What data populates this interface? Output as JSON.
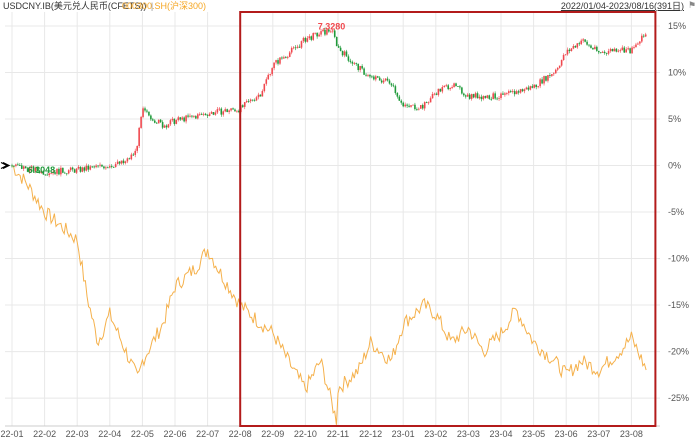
{
  "legend": {
    "series1": "USDCNY.IB(美元兑人民币(CFETS))",
    "separator": "|",
    "series2": "000300.SH(沪深300)",
    "date_range": "2022/01/04-2023/08/16(391日)"
  },
  "colors": {
    "up": "#f0484e",
    "down": "#1f9a3a",
    "flat": "#3fae49",
    "index_line": "#f5b14c",
    "highlight_box": "#b31b1b",
    "grid": "#e8e8e8",
    "axis_text": "#555555"
  },
  "icons": {
    "cursor": "arrow-cursor-icon",
    "settings": "flag-icon"
  },
  "chart_data": {
    "type": "line",
    "title": "",
    "x_tick_labels": [
      "22-01",
      "22-02",
      "22-03",
      "22-04",
      "22-05",
      "22-06",
      "22-07",
      "22-08",
      "22-09",
      "22-10",
      "22-11",
      "22-12",
      "23-01",
      "23-02",
      "23-03",
      "23-04",
      "23-05",
      "23-06",
      "23-07",
      "23-08"
    ],
    "y_unit": "%",
    "y_ticks": [
      15,
      10,
      5,
      0,
      -5,
      -10,
      -15,
      -20,
      -25
    ],
    "y_tick_labels": [
      "15%",
      "10%",
      "5%",
      "0%",
      "-5%",
      "-10%",
      "-15%",
      "-20%",
      "-25%"
    ],
    "ylim": [
      -28,
      16.5
    ],
    "grid": true,
    "annotations": [
      {
        "text": "7.3280",
        "x": "22-10-25",
        "y": 14.6,
        "color": "up"
      },
      {
        "text": "6.3048",
        "x": "22-01-28",
        "y": -0.8,
        "color": "down"
      }
    ],
    "highlight_range": {
      "from": "22-08",
      "to": "23-08"
    },
    "series": [
      {
        "name": "USDCNY.IB(美元兑人民币(CFETS))",
        "style": "candlestick",
        "x": [
          "22-01",
          "22-02",
          "22-03",
          "22-04-15",
          "22-04-25",
          "22-05",
          "22-05-20",
          "22-06",
          "22-07",
          "22-08",
          "22-08-20",
          "22-09",
          "22-09-25",
          "22-10",
          "22-10-25",
          "22-11",
          "22-11-15",
          "22-12",
          "22-12-20",
          "23-01",
          "23-01-20",
          "23-02",
          "23-02-15",
          "23-03",
          "23-04",
          "23-05",
          "23-05-20",
          "23-06",
          "23-06-15",
          "23-07",
          "23-07-20",
          "23-08",
          "23-08-15"
        ],
        "values": [
          0.0,
          -0.7,
          -0.5,
          0.3,
          1.5,
          5.9,
          4.3,
          4.8,
          5.6,
          6.1,
          7.8,
          10.8,
          12.9,
          13.6,
          14.6,
          12.7,
          11.0,
          9.4,
          9.0,
          6.3,
          6.4,
          7.9,
          8.7,
          7.5,
          7.4,
          8.5,
          10.1,
          12.1,
          13.5,
          12.1,
          12.6,
          12.3,
          14.2
        ]
      },
      {
        "name": "000300.SH(沪深300)",
        "style": "line",
        "x": [
          "22-01",
          "22-01-15",
          "22-02",
          "22-03",
          "22-03-10",
          "22-03-20",
          "22-04",
          "22-04-27",
          "22-05",
          "22-05-20",
          "22-06",
          "22-06-20",
          "22-07",
          "22-07-15",
          "22-08",
          "22-08-20",
          "22-09",
          "22-09-20",
          "22-10",
          "22-10-15",
          "22-10-31",
          "22-11",
          "22-11-20",
          "22-12",
          "22-12-20",
          "23-01",
          "23-01-20",
          "23-02",
          "23-02-15",
          "23-03",
          "23-03-15",
          "23-04",
          "23-04-15",
          "23-05",
          "23-05-20",
          "23-06",
          "23-06-15",
          "23-07",
          "23-07-20",
          "23-08",
          "23-08-15"
        ],
        "values": [
          0.0,
          -2.0,
          -5.0,
          -8.0,
          -14.0,
          -19.0,
          -16.0,
          -23.0,
          -21.0,
          -17.0,
          -13.0,
          -11.0,
          -9.0,
          -12.0,
          -15.0,
          -17.0,
          -18.0,
          -22.0,
          -24.0,
          -21.0,
          -28.0,
          -24.0,
          -22.0,
          -19.0,
          -21.0,
          -17.0,
          -15.0,
          -16.0,
          -19.0,
          -17.5,
          -20.0,
          -18.0,
          -15.5,
          -19.0,
          -21.0,
          -22.5,
          -21.0,
          -22.0,
          -20.0,
          -18.5,
          -22.0
        ]
      }
    ]
  }
}
